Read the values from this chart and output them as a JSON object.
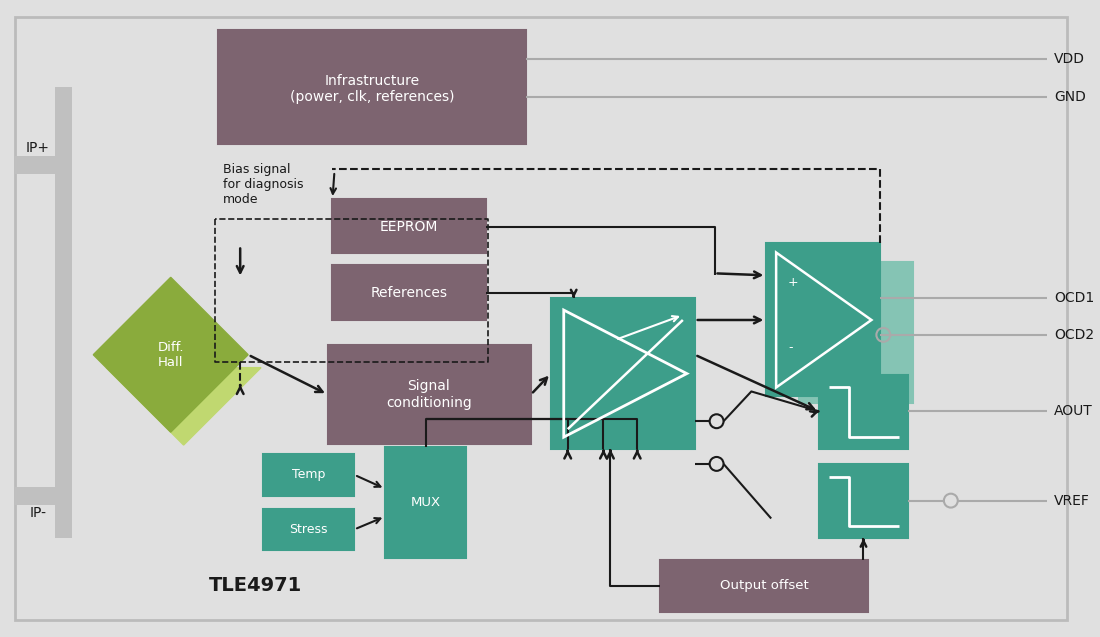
{
  "bg_color": "#e0e0e0",
  "teal": "#3d9e8a",
  "teal_light": "#85c4b4",
  "brown": "#7d6470",
  "green_dark": "#8aab3c",
  "green_light": "#c0d870",
  "white": "#ffffff",
  "black": "#1a1a1a",
  "gray": "#999999",
  "gray_line": "#aaaaaa",
  "labels": {
    "ip_plus": "IP+",
    "ip_minus": "IP-",
    "vdd": "VDD",
    "gnd": "GND",
    "ocd1": "OCD1",
    "ocd2": "OCD2",
    "aout": "AOUT",
    "vref": "VREF",
    "infra": "Infrastructure\n(power, clk, references)",
    "eeprom": "EEPROM",
    "references": "References",
    "diff_hall": "Diff.\nHall",
    "signal_cond": "Signal\nconditioning",
    "mux": "MUX",
    "temp": "Temp",
    "stress": "Stress",
    "output_offset": "Output offset",
    "bias": "Bias signal\nfor diagnosis\nmode",
    "title": "TLE4971"
  }
}
